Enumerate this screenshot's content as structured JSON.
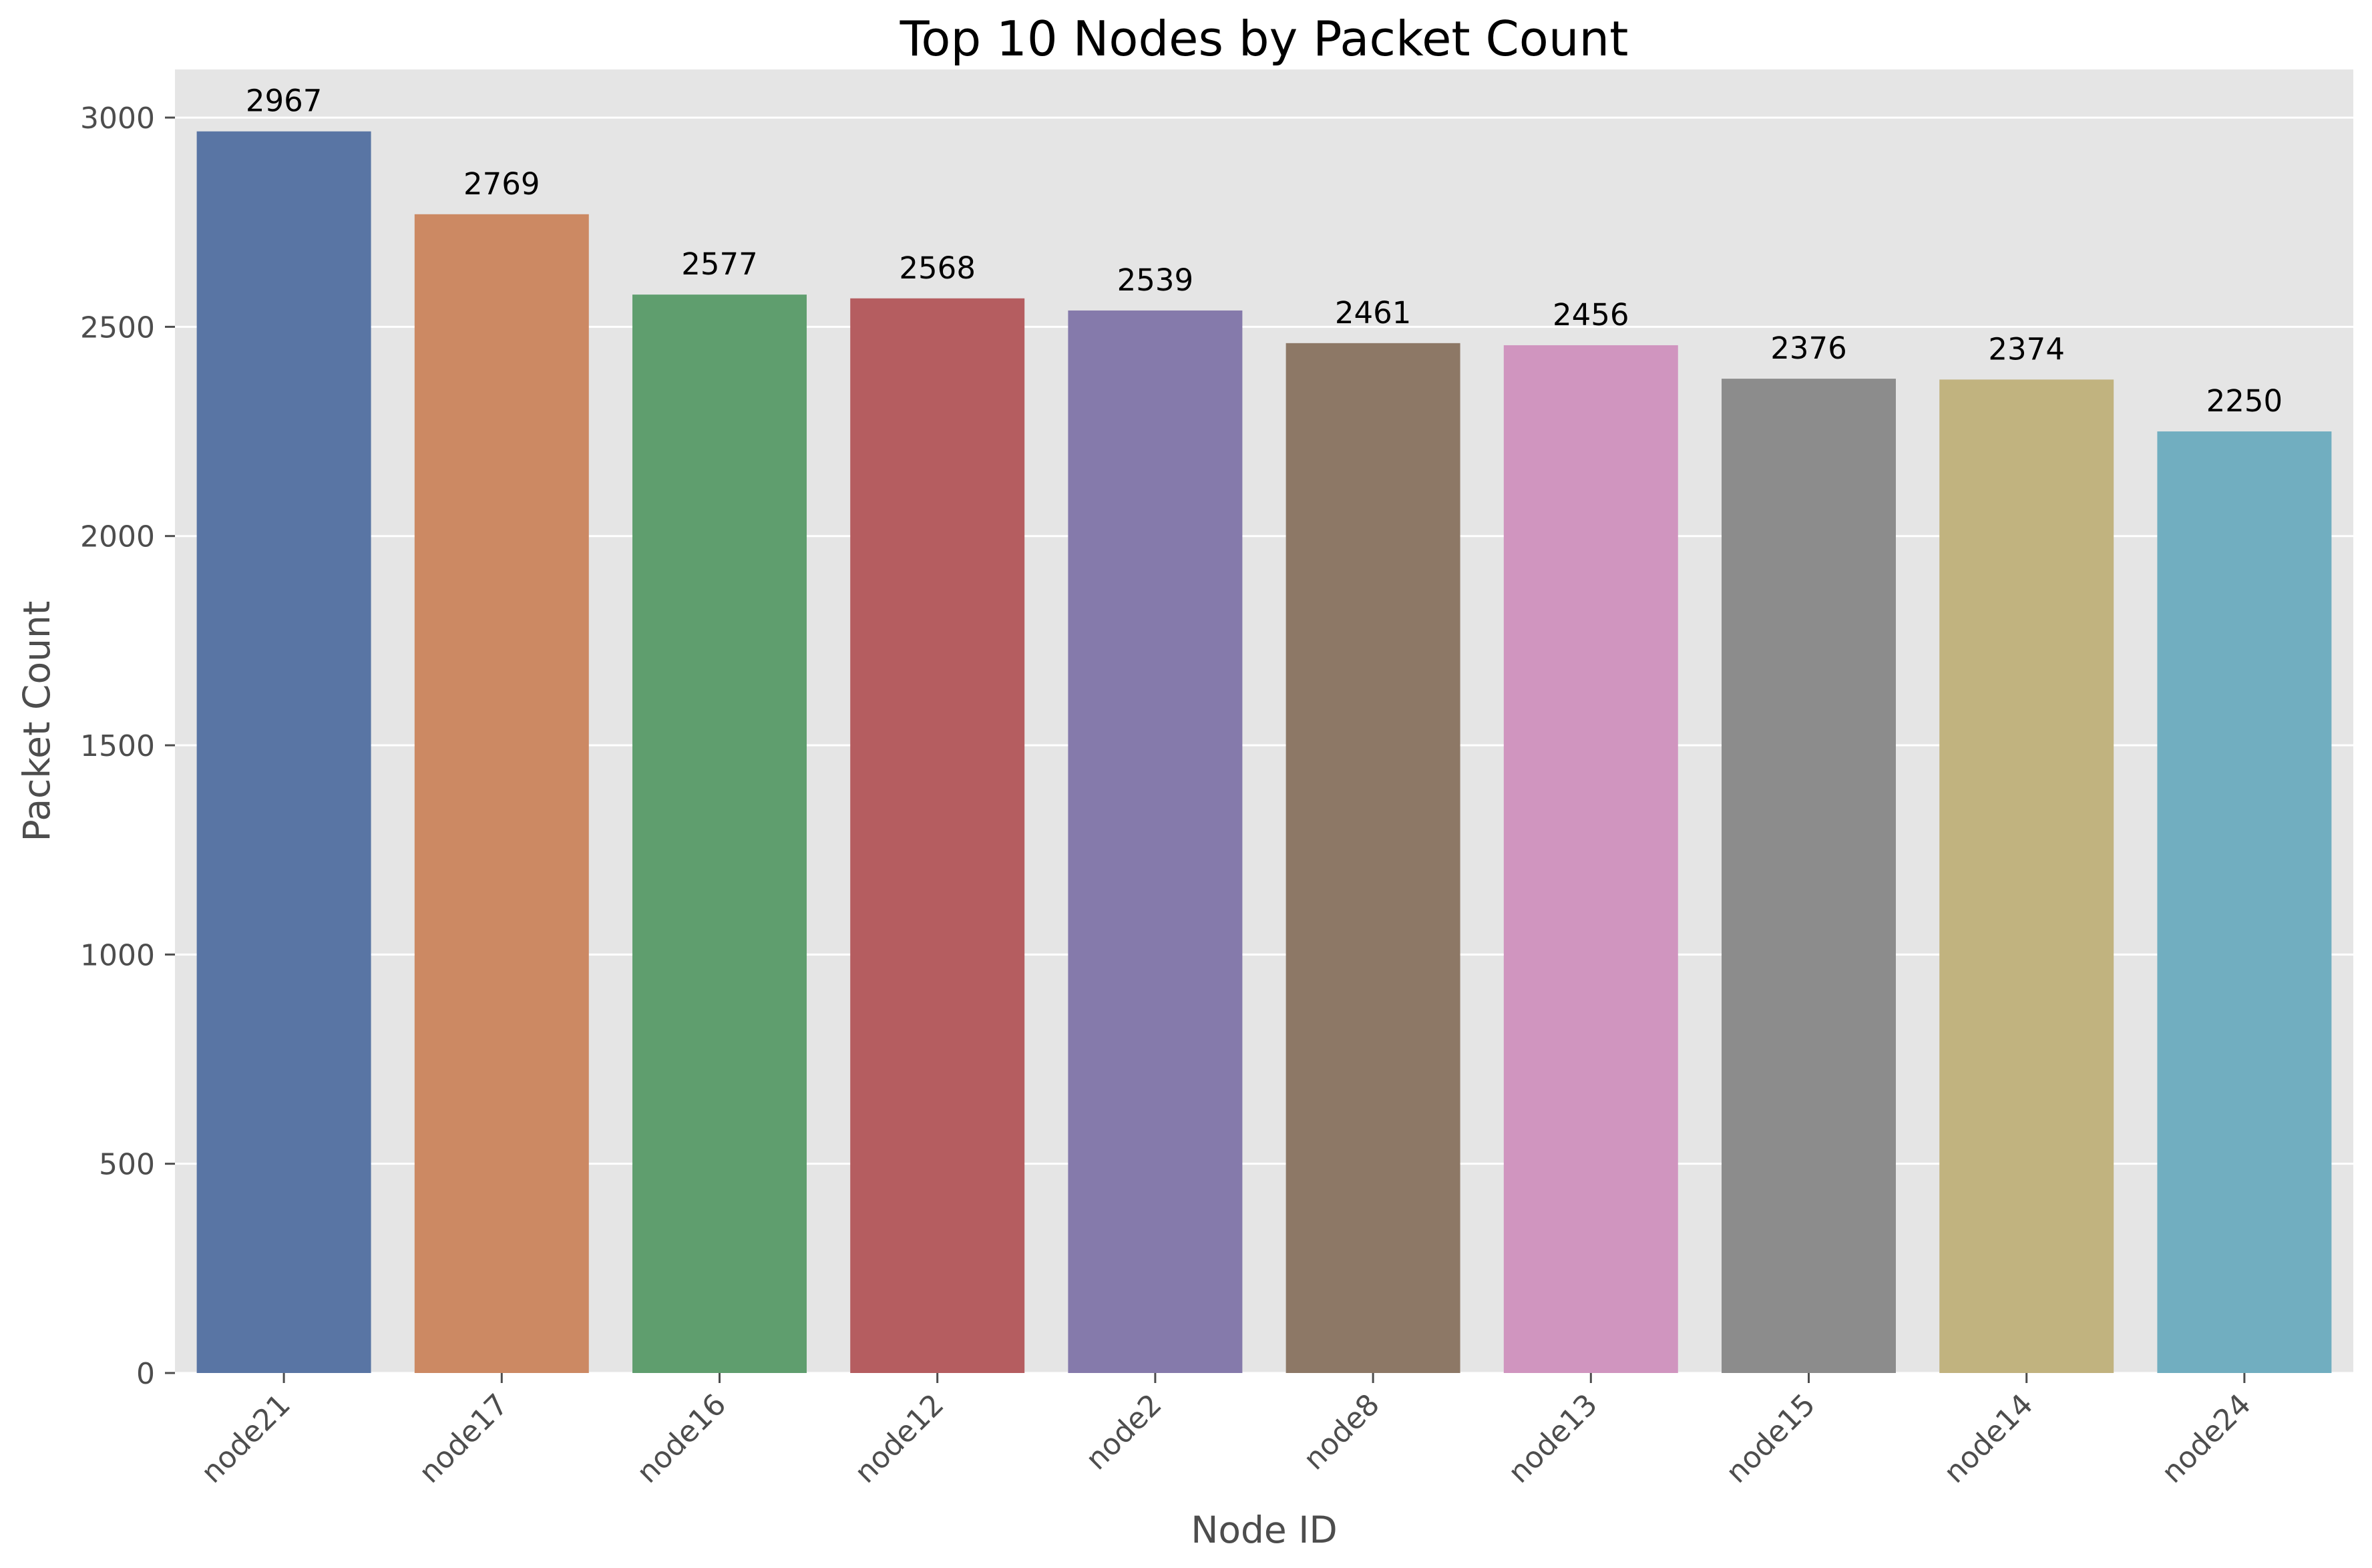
{
  "chart_data": {
    "type": "bar",
    "title": "Top 10 Nodes by Packet Count",
    "xlabel": "Node ID",
    "ylabel": "Packet Count",
    "categories": [
      "node21",
      "node17",
      "node16",
      "node12",
      "node2",
      "node8",
      "node13",
      "node15",
      "node14",
      "node24"
    ],
    "values": [
      2967,
      2769,
      2577,
      2568,
      2539,
      2461,
      2456,
      2376,
      2374,
      2250
    ],
    "ylim": [
      0,
      3115
    ],
    "yticks": [
      0,
      500,
      1000,
      1500,
      2000,
      2500,
      3000
    ],
    "grid": true,
    "legend": "none",
    "colors": [
      "#5975a4",
      "#cc8963",
      "#5f9e6e",
      "#b55d60",
      "#857aab",
      "#8d7866",
      "#d095bf",
      "#8c8c8c",
      "#c1b37f",
      "#71aec0"
    ],
    "background_color": "#e5e5e5",
    "grid_color": "#ffffff"
  }
}
